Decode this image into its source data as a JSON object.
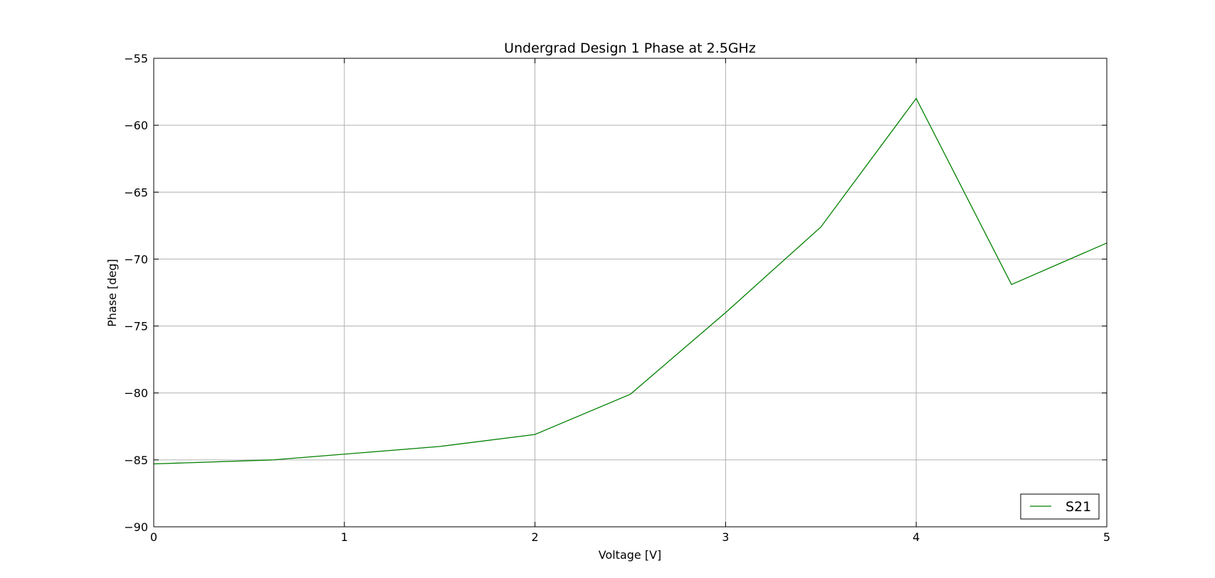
{
  "chart_data": {
    "type": "line",
    "title": "Undergrad Design 1 Phase at 2.5GHz",
    "xlabel": "Voltage [V]",
    "ylabel": "Phase [deg]",
    "xlim": [
      0,
      5
    ],
    "ylim": [
      -90,
      -55
    ],
    "xticks": [
      0,
      1,
      2,
      3,
      4,
      5
    ],
    "yticks": [
      -90,
      -85,
      -80,
      -75,
      -70,
      -65,
      -60,
      -55
    ],
    "xtick_labels": [
      "0",
      "1",
      "2",
      "3",
      "4",
      "5"
    ],
    "ytick_labels": [
      "−90",
      "−85",
      "−80",
      "−75",
      "−70",
      "−65",
      "−60",
      "−55"
    ],
    "grid": true,
    "legend_position": "lower-right",
    "series": [
      {
        "name": "S21",
        "color": "#008000",
        "x": [
          0,
          0.625,
          1.5,
          2.0,
          2.5,
          3.0,
          3.5,
          4.0,
          4.5,
          5.0
        ],
        "y": [
          -85.3,
          -85.0,
          -84.0,
          -83.1,
          -80.1,
          -74.0,
          -67.6,
          -58.0,
          -71.9,
          -68.8
        ]
      }
    ]
  }
}
